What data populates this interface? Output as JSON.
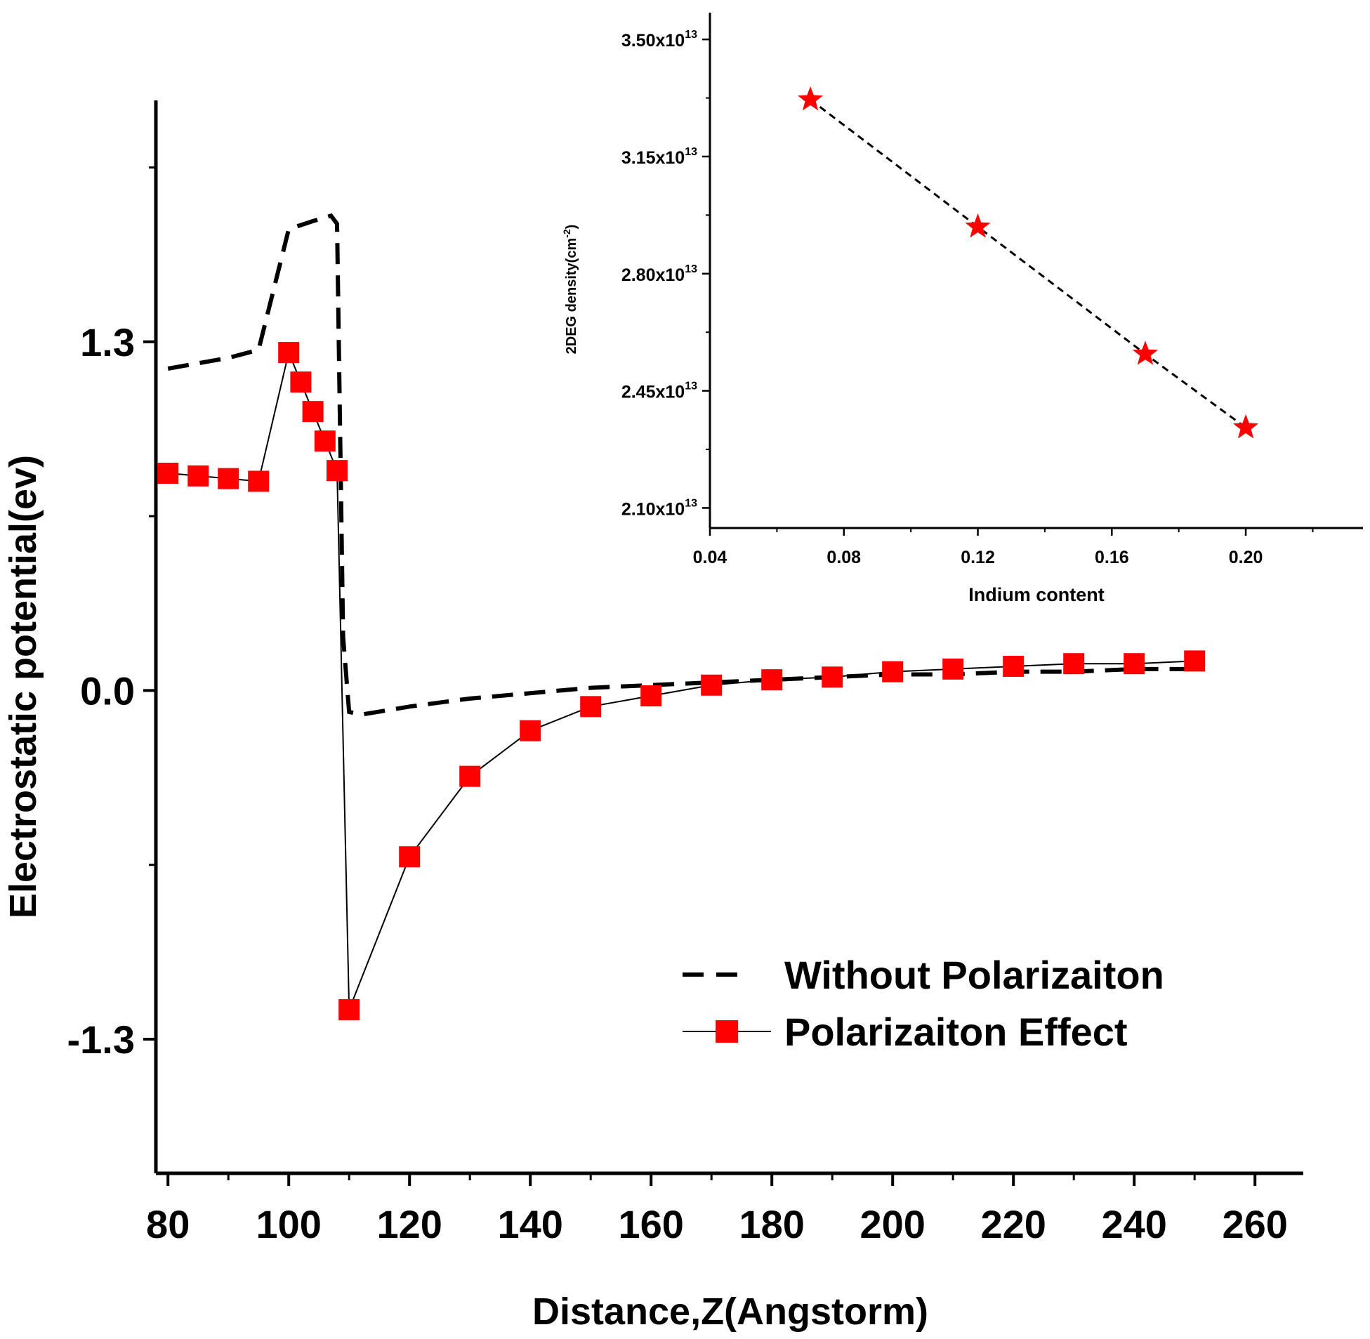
{
  "chart_data": [
    {
      "type": "line",
      "xlabel": "Distance,Z(Angstorm)",
      "ylabel": "Electrostatic potential(ev)",
      "xlim": [
        78,
        268
      ],
      "ylim": [
        -1.8,
        2.2
      ],
      "xticks": [
        80,
        100,
        120,
        140,
        160,
        180,
        200,
        220,
        240,
        260
      ],
      "yticks": [
        1.3,
        0.0,
        -1.3
      ],
      "ytick_labels": [
        "1.3",
        "0.0",
        "-1.3"
      ],
      "grid": false,
      "legend_position": "bottom-right",
      "series": [
        {
          "name": "Without Polarizaiton",
          "style": "dashed",
          "color": "#000000",
          "x": [
            80,
            90,
            95,
            100,
            104,
            107,
            108,
            109,
            110,
            112,
            120,
            130,
            140,
            150,
            160,
            170,
            180,
            190,
            200,
            210,
            220,
            230,
            240,
            250
          ],
          "y": [
            1.2,
            1.24,
            1.27,
            1.72,
            1.75,
            1.77,
            1.74,
            0.2,
            -0.08,
            -0.09,
            -0.06,
            -0.03,
            -0.01,
            0.01,
            0.02,
            0.03,
            0.04,
            0.05,
            0.06,
            0.06,
            0.07,
            0.07,
            0.08,
            0.08
          ]
        },
        {
          "name": "Polarizaiton Effect",
          "style": "solid",
          "marker": "square",
          "color": "#ff0000",
          "x": [
            80,
            85,
            90,
            95,
            100,
            102,
            104,
            106,
            108,
            110,
            120,
            130,
            140,
            150,
            160,
            170,
            180,
            190,
            200,
            210,
            220,
            230,
            240,
            250
          ],
          "y": [
            0.81,
            0.8,
            0.79,
            0.78,
            1.26,
            1.15,
            1.04,
            0.93,
            0.82,
            -1.19,
            -0.62,
            -0.32,
            -0.15,
            -0.06,
            -0.02,
            0.02,
            0.04,
            0.05,
            0.07,
            0.08,
            0.09,
            0.1,
            0.1,
            0.11
          ]
        }
      ]
    },
    {
      "type": "scatter",
      "xlabel": "Indium content",
      "ylabel": "2DEG density(cm",
      "ylabel_sup": "-2",
      "ylabel_close": ")",
      "xlim": [
        0.04,
        0.235
      ],
      "ylim": [
        20400000000000.0,
        35800000000000.0
      ],
      "xticks": [
        0.04,
        0.08,
        0.12,
        0.16,
        0.2
      ],
      "xtick_labels": [
        "0.04",
        "0.08",
        "0.12",
        "0.16",
        "0.20"
      ],
      "yticks": [
        21000000000000.0,
        24500000000000.0,
        28000000000000.0,
        31500000000000.0,
        35000000000000.0
      ],
      "ytick_mantissa": [
        "2.10x10",
        "2.45x10",
        "2.80x10",
        "3.15x10",
        "3.50x10"
      ],
      "ytick_exponent": "13",
      "grid": false,
      "series": [
        {
          "style": "dashed",
          "marker": "star",
          "color": "#ff0000",
          "x": [
            0.07,
            0.12,
            0.17,
            0.2
          ],
          "y": [
            33200000000000.0,
            29400000000000.0,
            25600000000000.0,
            23400000000000.0
          ]
        }
      ]
    }
  ]
}
